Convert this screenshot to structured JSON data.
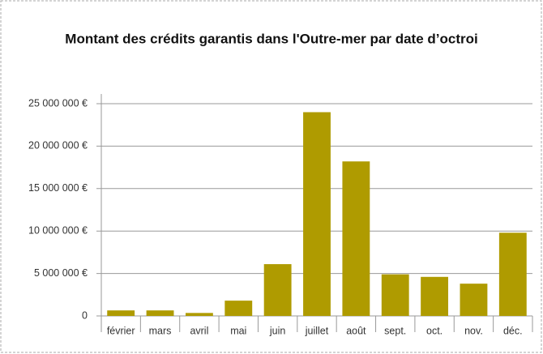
{
  "chart_data": {
    "type": "bar",
    "title": "Montant des crédits garantis dans l'Outre-mer par date d’octroi",
    "categories": [
      "février",
      "mars",
      "avril",
      "mai",
      "juin",
      "juillet",
      "août",
      "sept.",
      "oct.",
      "nov.",
      "déc."
    ],
    "values": [
      650000,
      650000,
      350000,
      1800000,
      6100000,
      24000000,
      18200000,
      4900000,
      4600000,
      3800000,
      9800000
    ],
    "color": "#af9b00",
    "ylim": [
      0,
      25000000
    ],
    "yticks": [
      0,
      {
        "value": 5000000,
        "label": "5 000 000 €"
      },
      {
        "value": 10000000,
        "label": "10 000 000 €"
      },
      {
        "value": 15000000,
        "label": "15 000 000 €"
      },
      {
        "value": 20000000,
        "label": "20 000 000 €"
      },
      {
        "value": 25000000,
        "label": "25 000 000 €"
      }
    ],
    "grid": true
  }
}
